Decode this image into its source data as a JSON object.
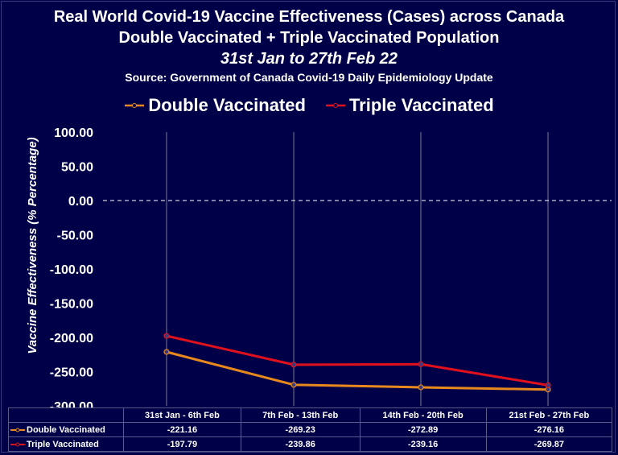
{
  "titles": {
    "line1": "Real World Covid-19 Vaccine Effectiveness (Cases) across Canada",
    "line2": "Double Vaccinated + Triple Vaccinated Population",
    "line3": "31st Jan to 27th Feb 22",
    "line4": "Source: Government of Canada  Covid-19 Daily Epidemiology Update"
  },
  "colors": {
    "background": "#000048",
    "double": "#e8891e",
    "triple": "#e0101c",
    "grid": "#9a9aa8"
  },
  "chart_data": {
    "type": "line",
    "title": "Real World Covid-19 Vaccine Effectiveness (Cases) across Canada",
    "ylabel": "Vaccine Effectiveness (% Percentage)",
    "xlabel": "",
    "ylim": [
      -300,
      100
    ],
    "yticks": [
      "100.00",
      "50.00",
      "0.00",
      "-50.00",
      "-100.00",
      "-150.00",
      "-200.00",
      "-250.00",
      "-300.00"
    ],
    "ytick_values": [
      100,
      50,
      0,
      -50,
      -100,
      -150,
      -200,
      -250,
      -300
    ],
    "categories": [
      "31st Jan - 6th Feb",
      "7th Feb - 13th Feb",
      "14th Feb - 20th Feb",
      "21st Feb - 27th Feb"
    ],
    "series": [
      {
        "name": "Double Vaccinated",
        "values": [
          -221.16,
          -269.23,
          -272.89,
          -276.16
        ],
        "labels": [
          "-221.16",
          "-269.23",
          "-272.89",
          "-276.16"
        ]
      },
      {
        "name": "Triple Vaccinated",
        "values": [
          -197.79,
          -239.86,
          -239.16,
          -269.87
        ],
        "labels": [
          "-197.79",
          "-239.86",
          "-239.16",
          "-269.87"
        ]
      }
    ],
    "legend": "top"
  }
}
